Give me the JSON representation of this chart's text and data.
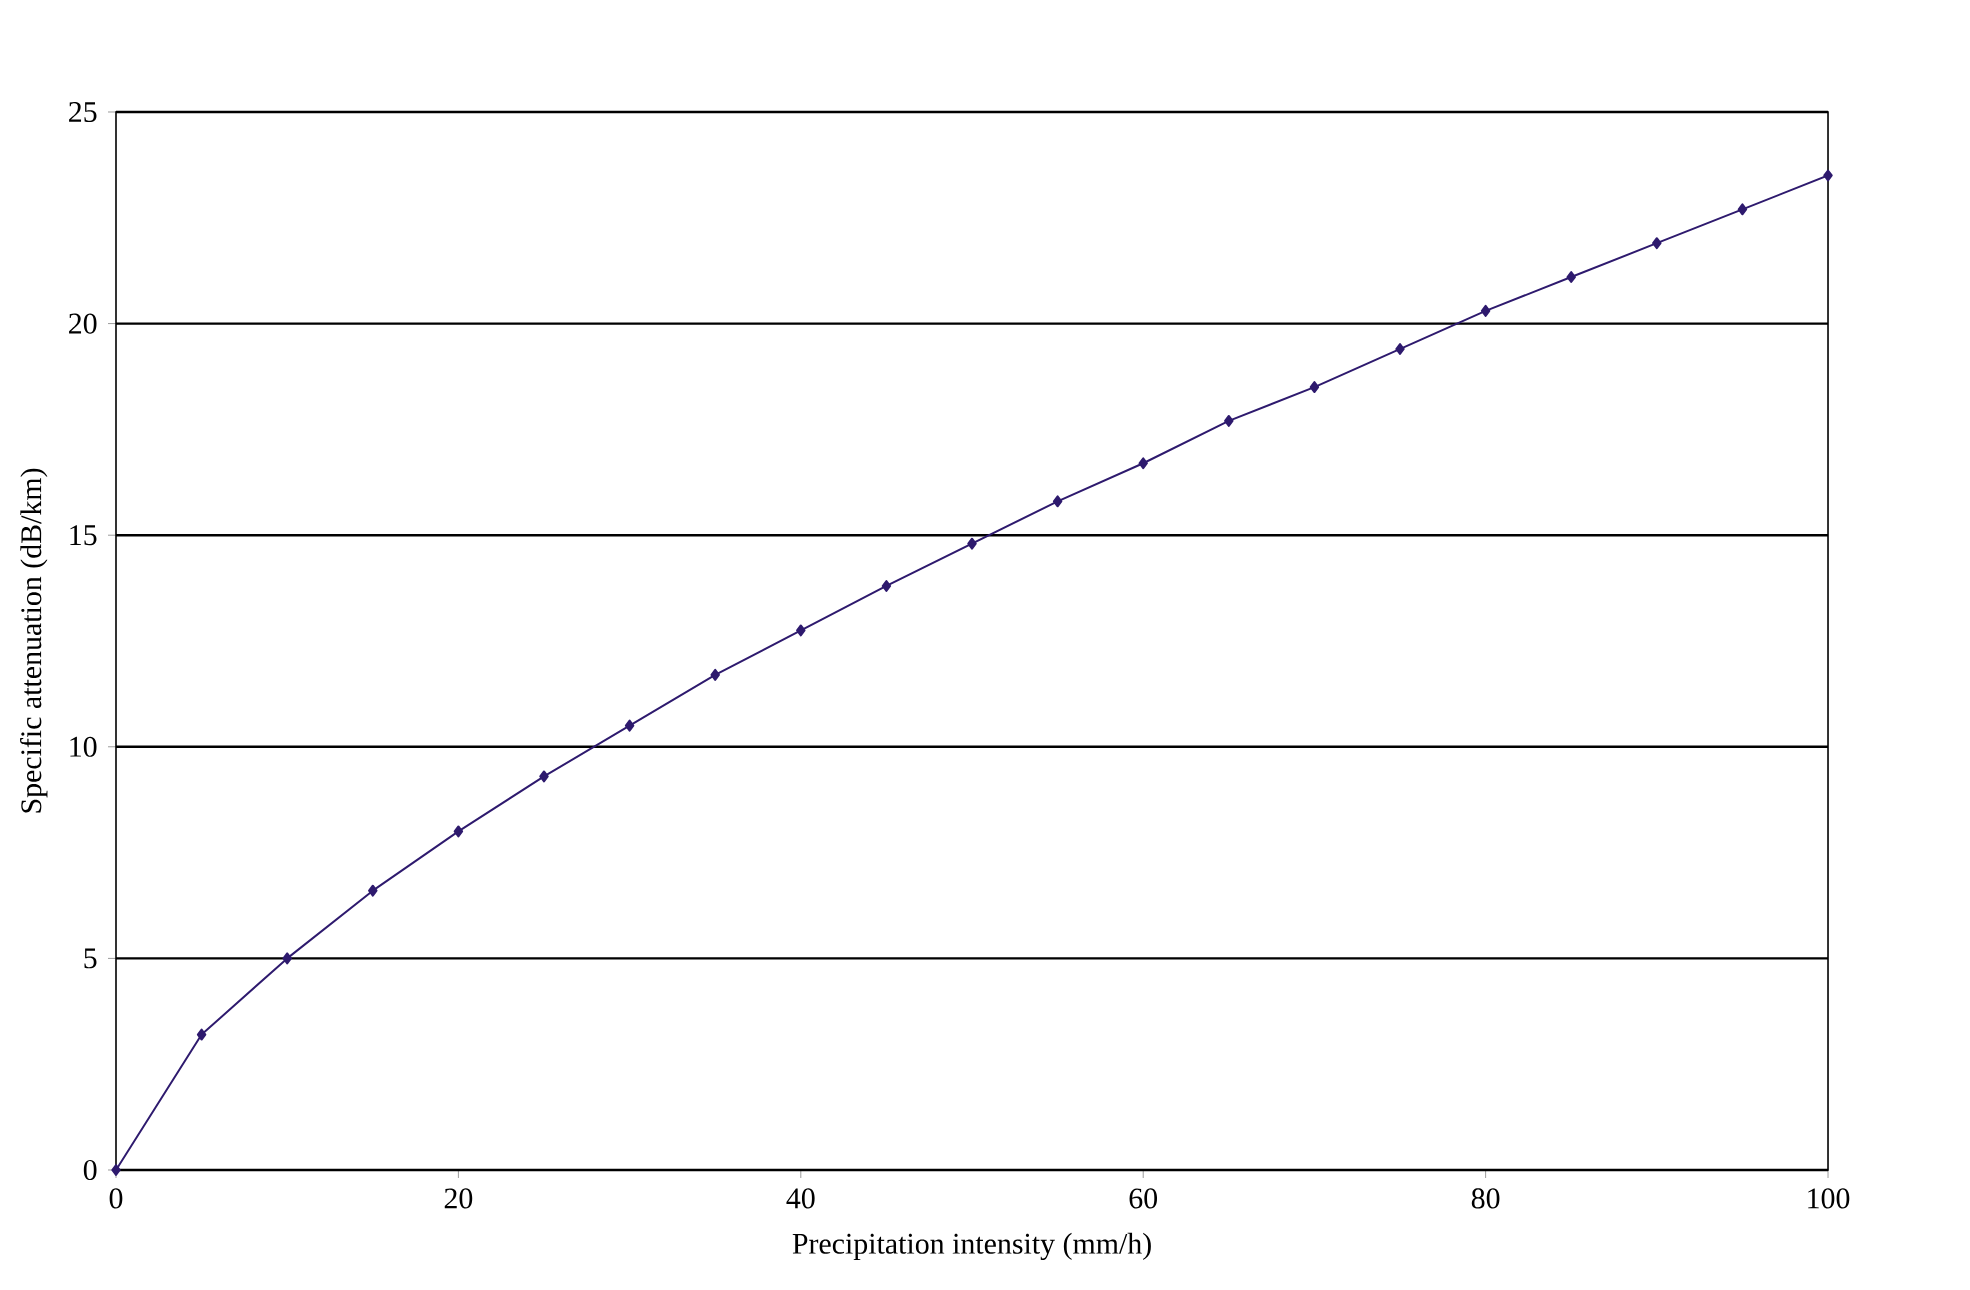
{
  "chart_data": {
    "type": "line",
    "xlabel": "Precipitation intensity (mm/h)",
    "ylabel": "Specific attenuation (dB/km)",
    "x": [
      0,
      5,
      10,
      15,
      20,
      25,
      30,
      35,
      40,
      45,
      50,
      55,
      60,
      65,
      70,
      75,
      80,
      85,
      90,
      95,
      100
    ],
    "series": [
      {
        "color": "#2e1a6e",
        "values": [
          0,
          3.2,
          5.0,
          6.6,
          8.0,
          9.3,
          10.5,
          11.7,
          12.75,
          13.8,
          14.8,
          15.8,
          16.7,
          17.7,
          18.5,
          19.4,
          20.3,
          21.1,
          21.9,
          22.7,
          23.5
        ]
      }
    ],
    "xlim": [
      0,
      100
    ],
    "ylim": [
      0,
      25
    ],
    "xticks": [
      0,
      20,
      40,
      60,
      80,
      100
    ],
    "yticks": [
      0,
      5,
      10,
      15,
      20,
      25
    ],
    "grid": "y",
    "marker": "diamond",
    "line_style": "solid"
  }
}
